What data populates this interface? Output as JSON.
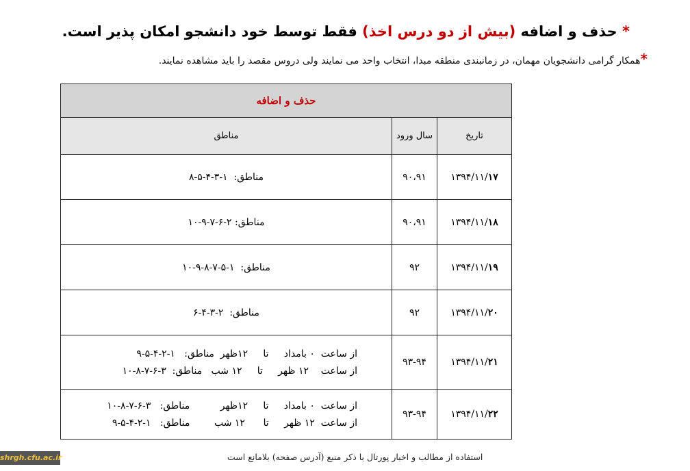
{
  "header": {
    "star": "*",
    "title_part1": "حذف و اضافه ",
    "title_red": "(بیش از دو درس اخذ)",
    "title_part2": " فقط توسط خود دانشجو امکان پذیر است.",
    "note_star": "*",
    "note": "همکار گرامی دانشجویان مهمان، در زمانبندی منطقه مبدا، انتخاب واحد می نمایند ولی دروس مقصد را باید مشاهده نمایند."
  },
  "table": {
    "caption": "حذف و اضافه",
    "columns": {
      "date": "تاریخ",
      "year": "سال ورود",
      "zones": "مناطق"
    },
    "rows": [
      {
        "date_prefix": "۱۳۹۴/۱۱/",
        "date_day": "۱۷",
        "year": "۹۰،۹۱",
        "lines": [
          "مناطق:  ۱-۳-۴-۵-۸"
        ]
      },
      {
        "date_prefix": "۱۳۹۴/۱۱/",
        "date_day": "۱۸",
        "year": "۹۰،۹۱",
        "lines": [
          "مناطق: ۲-۶-۷-۹-۱۰"
        ]
      },
      {
        "date_prefix": "۱۳۹۴/۱۱/",
        "date_day": "۱۹",
        "year": "۹۲",
        "lines": [
          "مناطق:  ۱-۵-۷-۸-۹-۱۰"
        ]
      },
      {
        "date_prefix": "۱۳۹۴/۱۱/",
        "date_day": "۲۰",
        "year": "۹۲",
        "lines": [
          "مناطق:  ۲-۳-۴-۶"
        ]
      },
      {
        "date_prefix": "۱۳۹۴/۱۱/",
        "date_day": "۲۱",
        "year": "۹۳-۹۴",
        "lines": [
          "از ساعت  ۰ بامداد     تا     ۱۲ظهر  مناطق:   ۱-۲-۴-۵-۹",
          "از ساعت    ۱۲ ظهر     تا     ۱۲ شب   مناطق:  ۳-۶-۷-۸-۱۰"
        ]
      },
      {
        "date_prefix": "۱۳۹۴/۱۱/",
        "date_day": "۲۲",
        "year": "۹۳-۹۴",
        "lines": [
          "از ساعت  ۰ بامداد     تا     ۱۲ظهر          مناطق:   ۳-۶-۷-۸-۱۰",
          "از ساعت  ۱۲ ظهر     تا      ۱۲ شب        مناطق:   ۱-۲-۴-۵-۹"
        ]
      }
    ]
  },
  "footer": "استفاده از مطالب و اخبار پورتال با ذکر منبع (آدرس صفحه) بلامانع است",
  "watermark": {
    "prefix": "shrgh",
    "domain": ".cfu.ac.ir"
  }
}
